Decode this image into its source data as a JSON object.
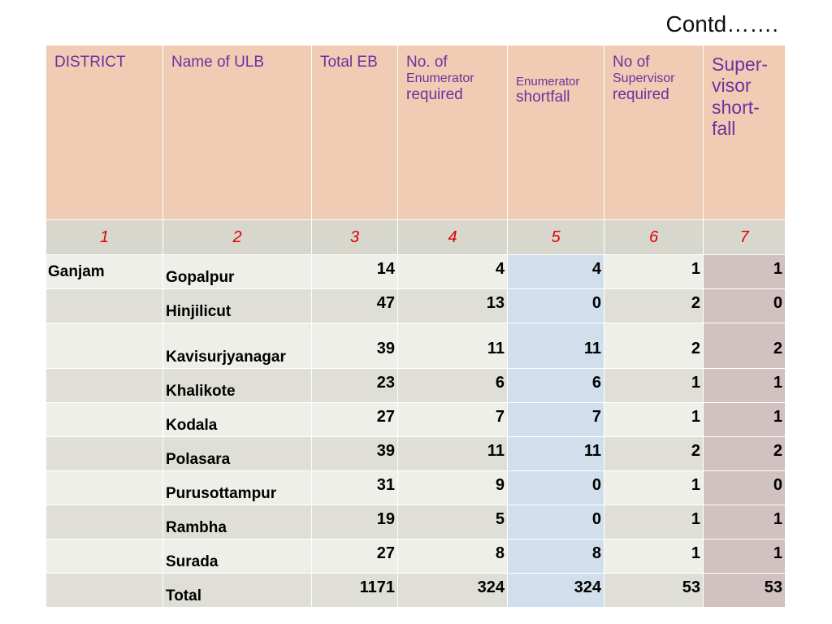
{
  "contd": "Contd…….",
  "headers": {
    "district": "DISTRICT",
    "name_of_ulb": "Name of ULB",
    "total_eb": "Total EB",
    "enumerator_required": [
      "No. of",
      "Enumerator",
      "required"
    ],
    "enumerator_shortfall": [
      "Enumerator",
      "shortfall"
    ],
    "supervisor_required": [
      "No of",
      "Supervisor",
      "required"
    ],
    "supervisor_shortfall": [
      "Super-",
      "visor",
      "short-",
      "fall"
    ]
  },
  "column_numbers": [
    "1",
    "2",
    "3",
    "4",
    "5",
    "6",
    "7"
  ],
  "rows": [
    {
      "district": "Ganjam",
      "ulb": "Gopalpur",
      "total_eb": "14",
      "enum_req": "4",
      "enum_short": "4",
      "sup_req": "1",
      "sup_short": "1"
    },
    {
      "district": "",
      "ulb": "Hinjilicut",
      "total_eb": "47",
      "enum_req": "13",
      "enum_short": "0",
      "sup_req": "2",
      "sup_short": "0"
    },
    {
      "district": "",
      "ulb": "Kavisurjyanagar",
      "total_eb": "39",
      "enum_req": "11",
      "enum_short": "11",
      "sup_req": "2",
      "sup_short": "2"
    },
    {
      "district": "",
      "ulb": "Khalikote",
      "total_eb": "23",
      "enum_req": "6",
      "enum_short": "6",
      "sup_req": "1",
      "sup_short": "1"
    },
    {
      "district": "",
      "ulb": "Kodala",
      "total_eb": "27",
      "enum_req": "7",
      "enum_short": "7",
      "sup_req": "1",
      "sup_short": "1"
    },
    {
      "district": "",
      "ulb": "Polasara",
      "total_eb": "39",
      "enum_req": "11",
      "enum_short": "11",
      "sup_req": "2",
      "sup_short": "2"
    },
    {
      "district": "",
      "ulb": "Purusottampur",
      "total_eb": "31",
      "enum_req": "9",
      "enum_short": "0",
      "sup_req": "1",
      "sup_short": "0"
    },
    {
      "district": "",
      "ulb": "Rambha",
      "total_eb": "19",
      "enum_req": "5",
      "enum_short": "0",
      "sup_req": "1",
      "sup_short": "1"
    },
    {
      "district": "",
      "ulb": "Surada",
      "total_eb": "27",
      "enum_req": "8",
      "enum_short": "8",
      "sup_req": "1",
      "sup_short": "1"
    },
    {
      "district": "",
      "ulb": "Total",
      "total_eb": "1171",
      "enum_req": "324",
      "enum_short": "324",
      "sup_req": "53",
      "sup_short": "53"
    }
  ],
  "colors": {
    "header_bg": "#efccb3",
    "header_text": "#7030a0",
    "number_row_bg": "#d7d7ce",
    "number_text": "#e00000",
    "row_light": "#efefea",
    "row_dark": "#dfdfd8",
    "col5_bg": "#d1dfec",
    "col7_bg": "#d1c1c0"
  }
}
